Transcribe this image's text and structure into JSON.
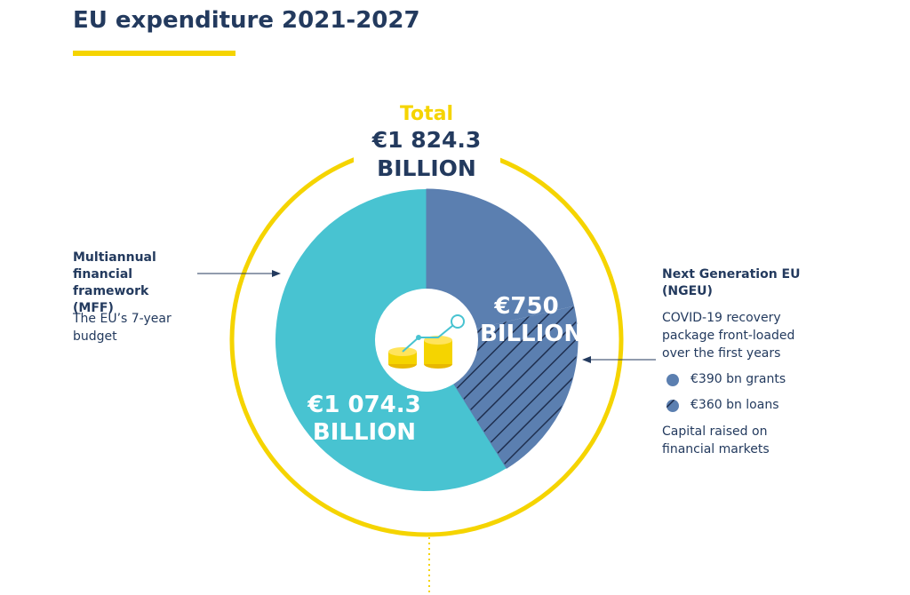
{
  "chart_data": {
    "type": "pie",
    "title": "EU expenditure 2021-2027",
    "total_label": "Total",
    "total": 1824.3,
    "total_value_label": "€1 824.3 BILLION",
    "categories": [
      "Multiannual financial framework (MFF)",
      "€390 bn grants",
      "€360 bn loans"
    ],
    "values": [
      1074.3,
      390,
      360
    ],
    "colors": [
      "#48c3d1",
      "#5b7fb0",
      "#5b7fb0"
    ],
    "hatched": [
      false,
      false,
      true
    ],
    "value_labels": [
      "€1 074.3 BILLION",
      null,
      null
    ],
    "ring_color": "#f5d400",
    "groups": [
      {
        "name": "Multiannual financial framework (MFF)",
        "description": "The EU’s 7-year budget"
      },
      {
        "name": "Next Generation EU (NGEU)",
        "description": "COVID-19 recovery package front-loaded over the first years",
        "value": 750,
        "value_label": "€750 BILLION",
        "note": "Capital raised on financial markets"
      }
    ]
  }
}
